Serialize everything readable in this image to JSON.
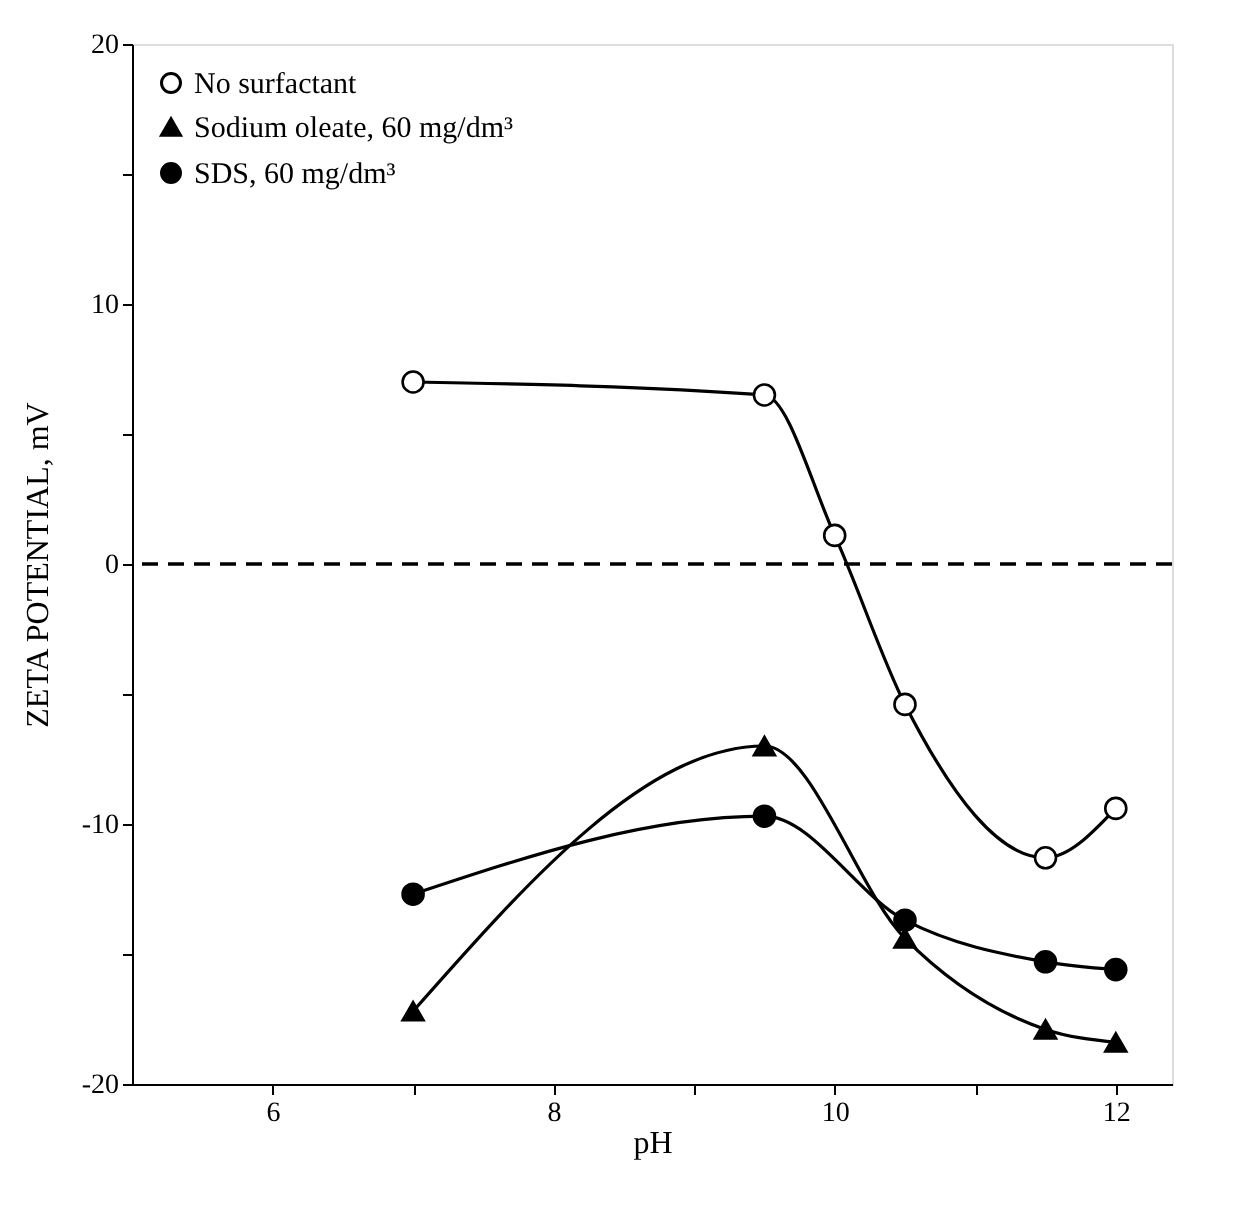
{
  "chart_data": {
    "type": "line",
    "xlabel": "pH",
    "ylabel": "ZETA POTENTIAL, mV",
    "x": [
      7,
      9.5,
      10,
      10.5,
      11.5,
      12
    ],
    "series": [
      {
        "name": "No surfactant",
        "color": "#000000",
        "marker": "circle open",
        "values": [
          7.0,
          6.5,
          1.1,
          -5.4,
          -11.3,
          -9.4
        ]
      },
      {
        "name": "Sodium oleate, 60 mg/dm³",
        "color": "#000000",
        "marker": "triangle",
        "x": [
          7,
          9.5,
          10.5,
          11.5,
          12
        ],
        "values": [
          -17.2,
          -7.0,
          -14.4,
          -17.9,
          -18.4
        ]
      },
      {
        "name": "SDS, 60 mg/dm³",
        "color": "#000000",
        "marker": "circle",
        "x": [
          7,
          9.5,
          10.5,
          11.5,
          12
        ],
        "values": [
          -12.7,
          -9.7,
          -13.7,
          -15.3,
          -15.6
        ]
      }
    ],
    "xlim": [
      5,
      12.4
    ],
    "xticks": [
      6,
      {
        "value": 7,
        "label": null
      },
      8,
      {
        "value": 9,
        "label": null
      },
      10,
      {
        "value": 11,
        "label": null
      },
      12
    ],
    "ylim": [
      -20,
      20
    ],
    "yticks": [
      -20,
      {
        "value": -15,
        "label": null
      },
      -10,
      {
        "value": -5,
        "label": null
      },
      0,
      {
        "value": 5,
        "label": null
      },
      10,
      {
        "value": 15,
        "label": null
      },
      20
    ],
    "ref_lines": [
      {
        "axis": "y",
        "value": 0,
        "line_style": "dashed",
        "color": "#000000"
      }
    ],
    "grid": false,
    "legend": "top left",
    "line_style": "solid"
  }
}
